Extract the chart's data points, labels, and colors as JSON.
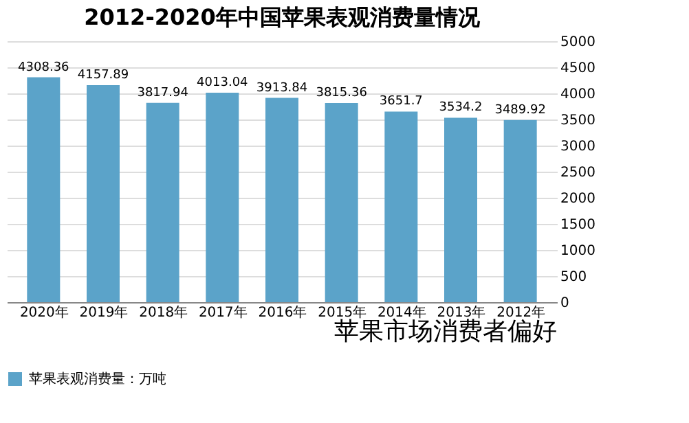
{
  "chart_data": {
    "type": "bar",
    "title": "2012-2020年中国苹果表观消费量情况",
    "categories": [
      "2020年",
      "2019年",
      "2018年",
      "2017年",
      "2016年",
      "2015年",
      "2014年",
      "2013年",
      "2012年"
    ],
    "series": [
      {
        "name": "苹果表观消费量：万吨",
        "color": "#5ba3c9",
        "values": [
          4308.36,
          4157.89,
          3817.94,
          4013.04,
          3913.84,
          3815.36,
          3651.7,
          3534.2,
          3489.92
        ]
      }
    ],
    "ylim": [
      0,
      5000
    ],
    "yticks": [
      0,
      500,
      1000,
      1500,
      2000,
      2500,
      3000,
      3500,
      4000,
      4500,
      5000
    ],
    "grid": "y",
    "legend": "bottom",
    "data_labels": true,
    "annotations": [
      "苹果市场消费者偏好"
    ]
  }
}
